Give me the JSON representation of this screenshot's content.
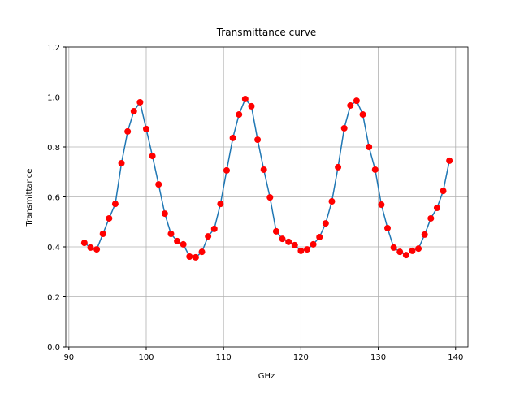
{
  "chart_data": {
    "type": "line",
    "title": "Transmittance curve",
    "x_label": "GHz",
    "y_label": "Transmittance",
    "x": [
      92,
      92.8,
      93.6,
      94.4,
      95.2,
      96,
      96.8,
      97.6,
      98.4,
      99.2,
      100,
      100.8,
      101.6,
      102.4,
      103.2,
      104,
      104.8,
      105.6,
      106.4,
      107.2,
      108,
      108.8,
      109.6,
      110.4,
      111.2,
      112,
      112.8,
      113.6,
      114.4,
      115.2,
      116,
      116.8,
      117.6,
      118.4,
      119.2,
      120,
      120.8,
      121.6,
      122.4,
      123.2,
      124,
      124.8,
      125.6,
      126.4,
      127.2,
      128,
      128.8,
      129.6,
      130.4,
      131.2,
      132,
      132.8,
      133.6,
      134.4,
      135.2,
      136,
      136.8,
      137.6,
      138.4,
      139.2
    ],
    "series": [
      {
        "color": "#1f77b4",
        "marker_color": "#ff0000",
        "values": [
          0.416,
          0.397,
          0.39,
          0.452,
          0.514,
          0.572,
          0.735,
          0.862,
          0.943,
          0.979,
          0.872,
          0.764,
          0.65,
          0.533,
          0.452,
          0.423,
          0.41,
          0.361,
          0.358,
          0.38,
          0.442,
          0.472,
          0.572,
          0.706,
          0.836,
          0.93,
          0.992,
          0.963,
          0.829,
          0.709,
          0.598,
          0.462,
          0.432,
          0.42,
          0.407,
          0.384,
          0.39,
          0.41,
          0.439,
          0.494,
          0.582,
          0.719,
          0.875,
          0.966,
          0.985,
          0.93,
          0.8,
          0.709,
          0.569,
          0.475,
          0.397,
          0.38,
          0.367,
          0.384,
          0.393,
          0.449,
          0.514,
          0.556,
          0.624,
          0.745
        ]
      }
    ],
    "xlim": [
      89.6,
      141.6
    ],
    "xticks": [
      90,
      100,
      110,
      120,
      130,
      140
    ],
    "ylim": [
      0,
      1.2
    ],
    "yticks": [
      {
        "value": 0,
        "label": "0.0"
      },
      0.2,
      0.4,
      0.6,
      0.8,
      {
        "value": 1,
        "label": "1.0"
      },
      1.2
    ],
    "grid": true
  }
}
